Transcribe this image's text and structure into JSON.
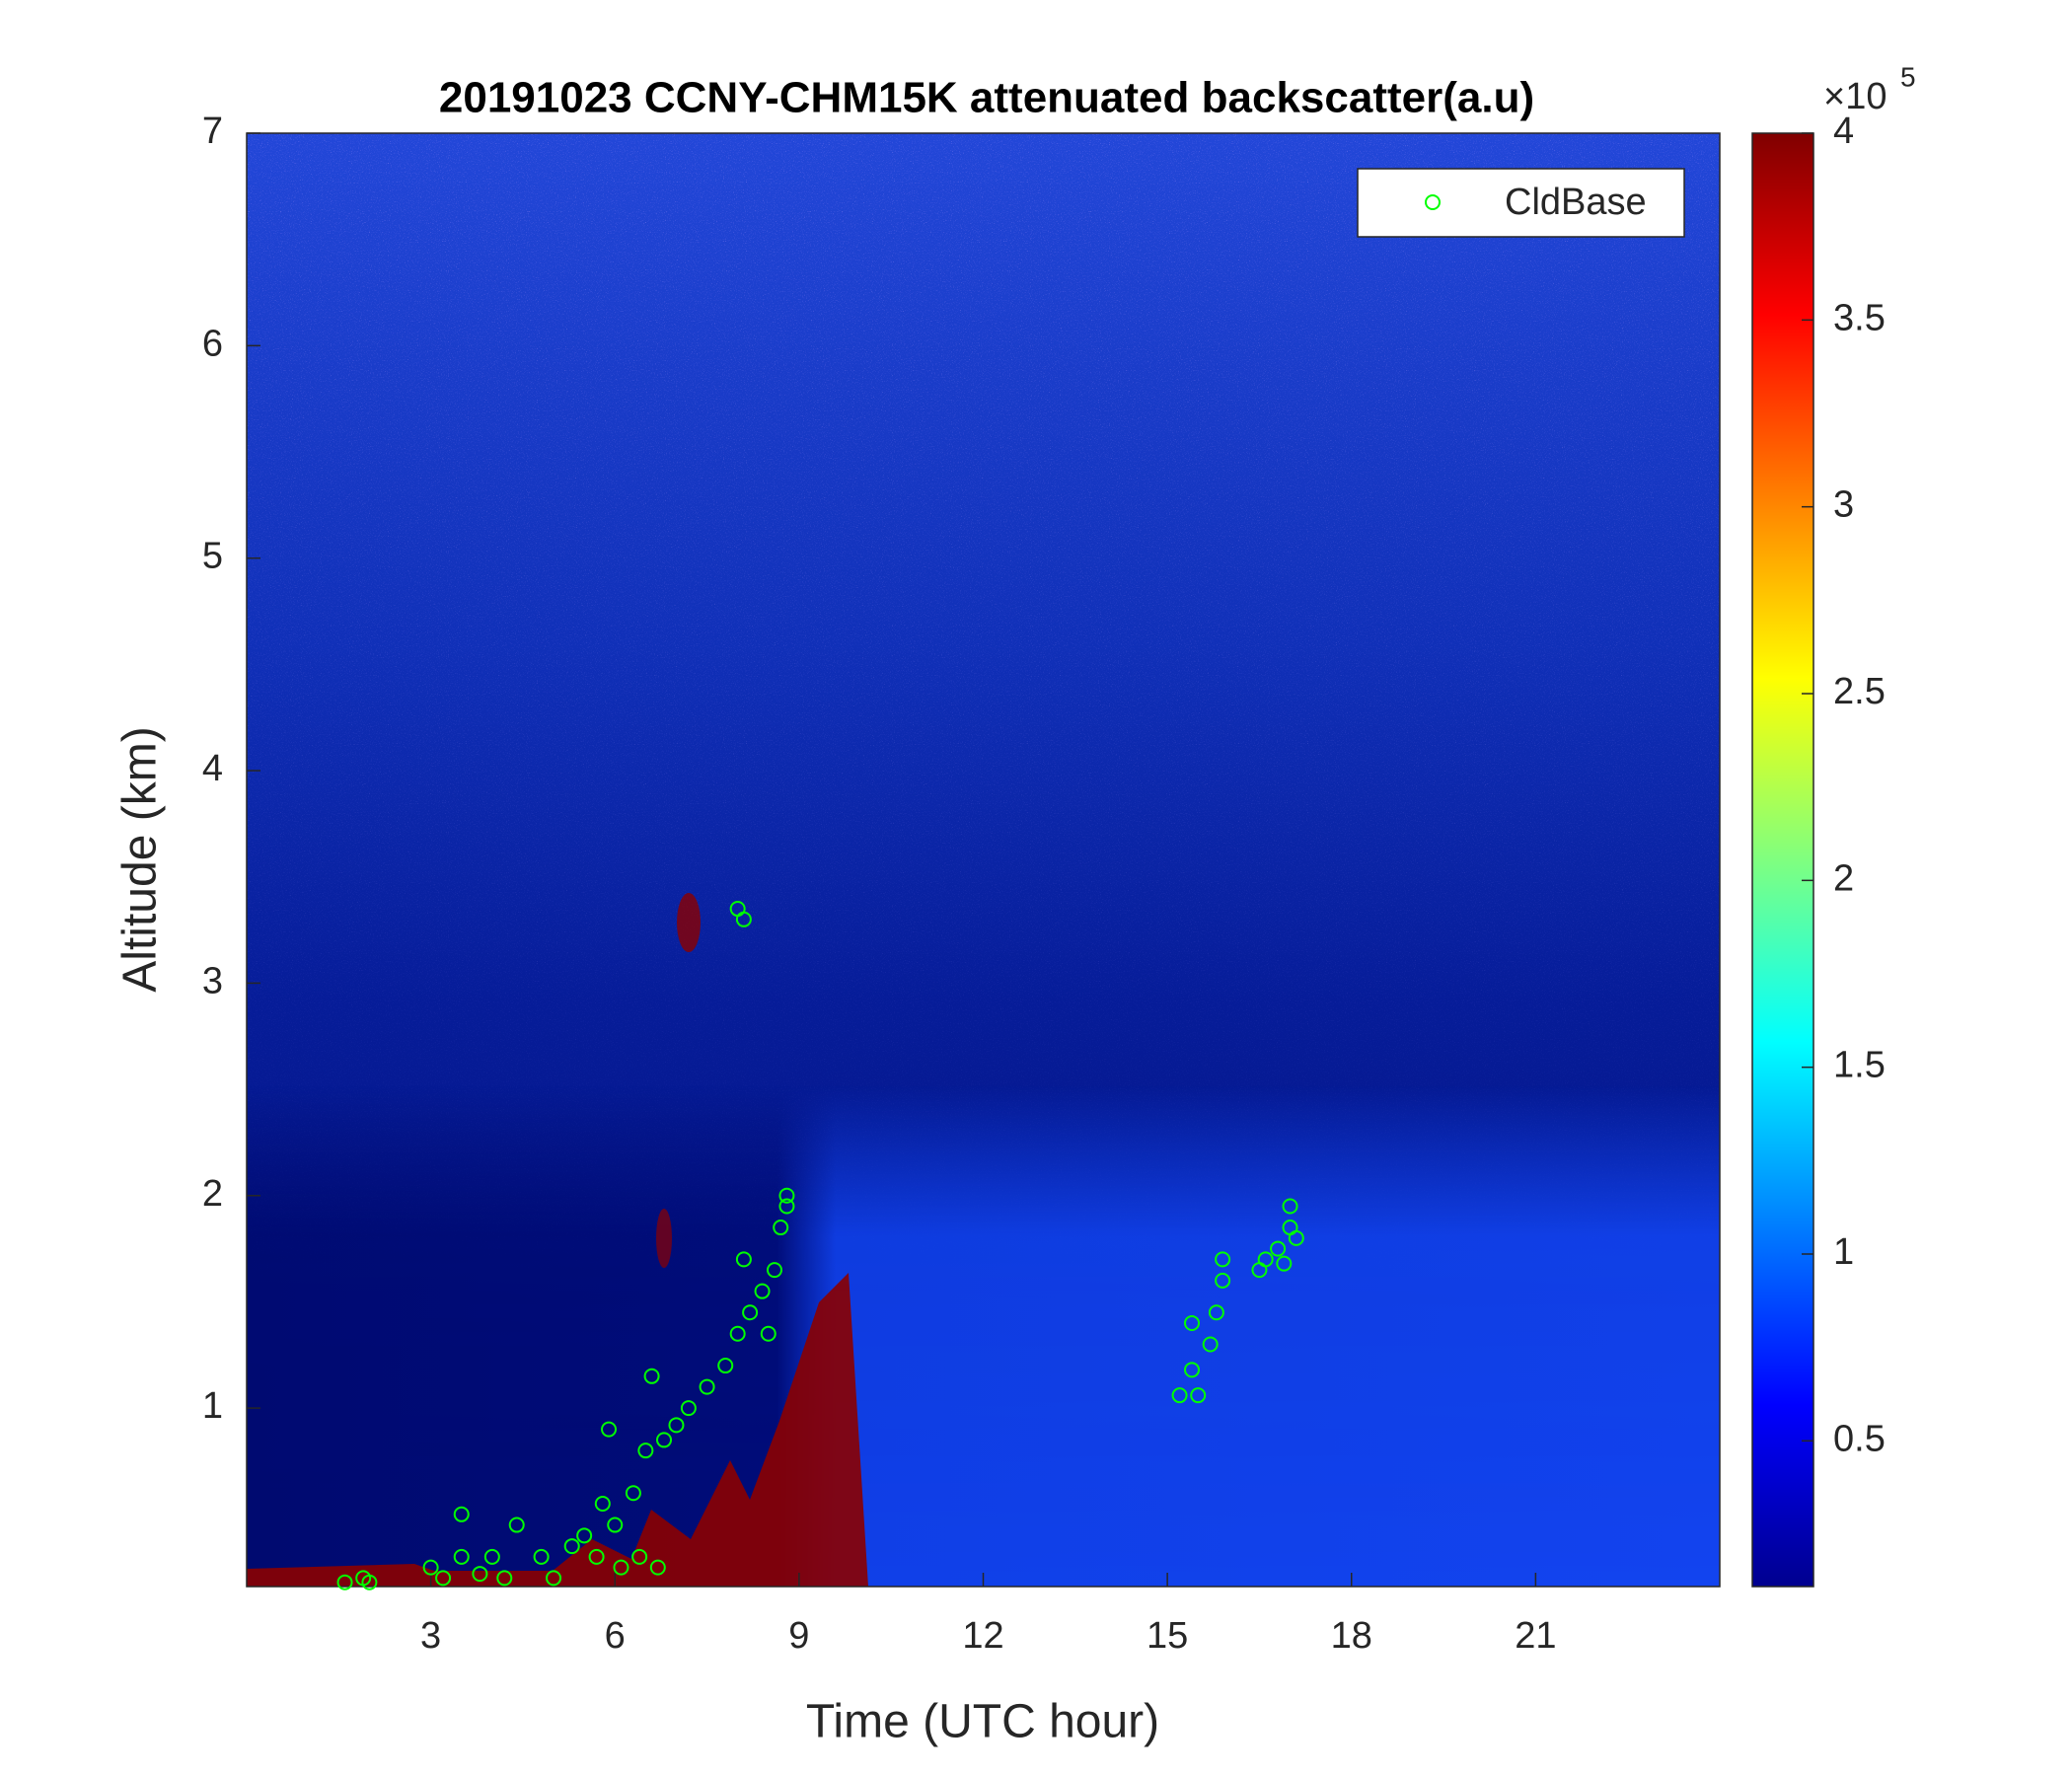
{
  "chart_data": {
    "type": "scatter",
    "title": "20191023 CCNY-CHM15K attenuated backscatter(a.u)",
    "xlabel": "Time (UTC hour)",
    "ylabel": "Altitude (km)",
    "xlim": [
      0,
      24
    ],
    "ylim": [
      0.16,
      7
    ],
    "xticks": [
      3,
      6,
      9,
      12,
      15,
      18,
      21
    ],
    "yticks": [
      1,
      2,
      3,
      4,
      5,
      6,
      7
    ],
    "legend": "upper right",
    "series": [
      {
        "name": "CldBase",
        "color": "#00ff00",
        "x": [
          1.6,
          1.9,
          2.0,
          3.0,
          3.2,
          3.5,
          3.5,
          3.8,
          4.0,
          4.2,
          4.4,
          4.8,
          5.0,
          5.3,
          5.5,
          5.7,
          5.8,
          5.9,
          6.0,
          6.1,
          6.3,
          6.4,
          6.5,
          6.6,
          6.7,
          6.8,
          7.0,
          7.2,
          7.5,
          7.8,
          8.0,
          8.0,
          8.1,
          8.1,
          8.2,
          8.4,
          8.5,
          8.6,
          8.7,
          8.8,
          8.8,
          15.2,
          15.4,
          15.4,
          15.5,
          15.7,
          15.8,
          15.9,
          15.9,
          16.5,
          16.6,
          16.8,
          16.9,
          17.0,
          17.0,
          17.1
        ],
        "values": [
          0.18,
          0.2,
          0.18,
          0.25,
          0.2,
          0.5,
          0.3,
          0.22,
          0.3,
          0.2,
          0.45,
          0.3,
          0.2,
          0.35,
          0.4,
          0.3,
          0.55,
          0.9,
          0.45,
          0.25,
          0.6,
          0.3,
          0.8,
          1.15,
          0.25,
          0.85,
          0.92,
          1.0,
          1.1,
          1.2,
          1.35,
          3.35,
          3.3,
          1.7,
          1.45,
          1.55,
          1.35,
          1.65,
          1.85,
          2.0,
          1.95,
          1.06,
          1.18,
          1.4,
          1.06,
          1.3,
          1.45,
          1.6,
          1.7,
          1.65,
          1.7,
          1.75,
          1.68,
          1.85,
          1.95,
          1.8
        ]
      }
    ],
    "colorbar": {
      "colormap": "jet",
      "clim": [
        0.11,
        4
      ],
      "cticks": [
        0.5,
        1,
        1.5,
        2,
        2.5,
        3,
        3.5,
        4
      ],
      "multiplier": {
        "base": "×10",
        "exponent": "5"
      }
    }
  }
}
